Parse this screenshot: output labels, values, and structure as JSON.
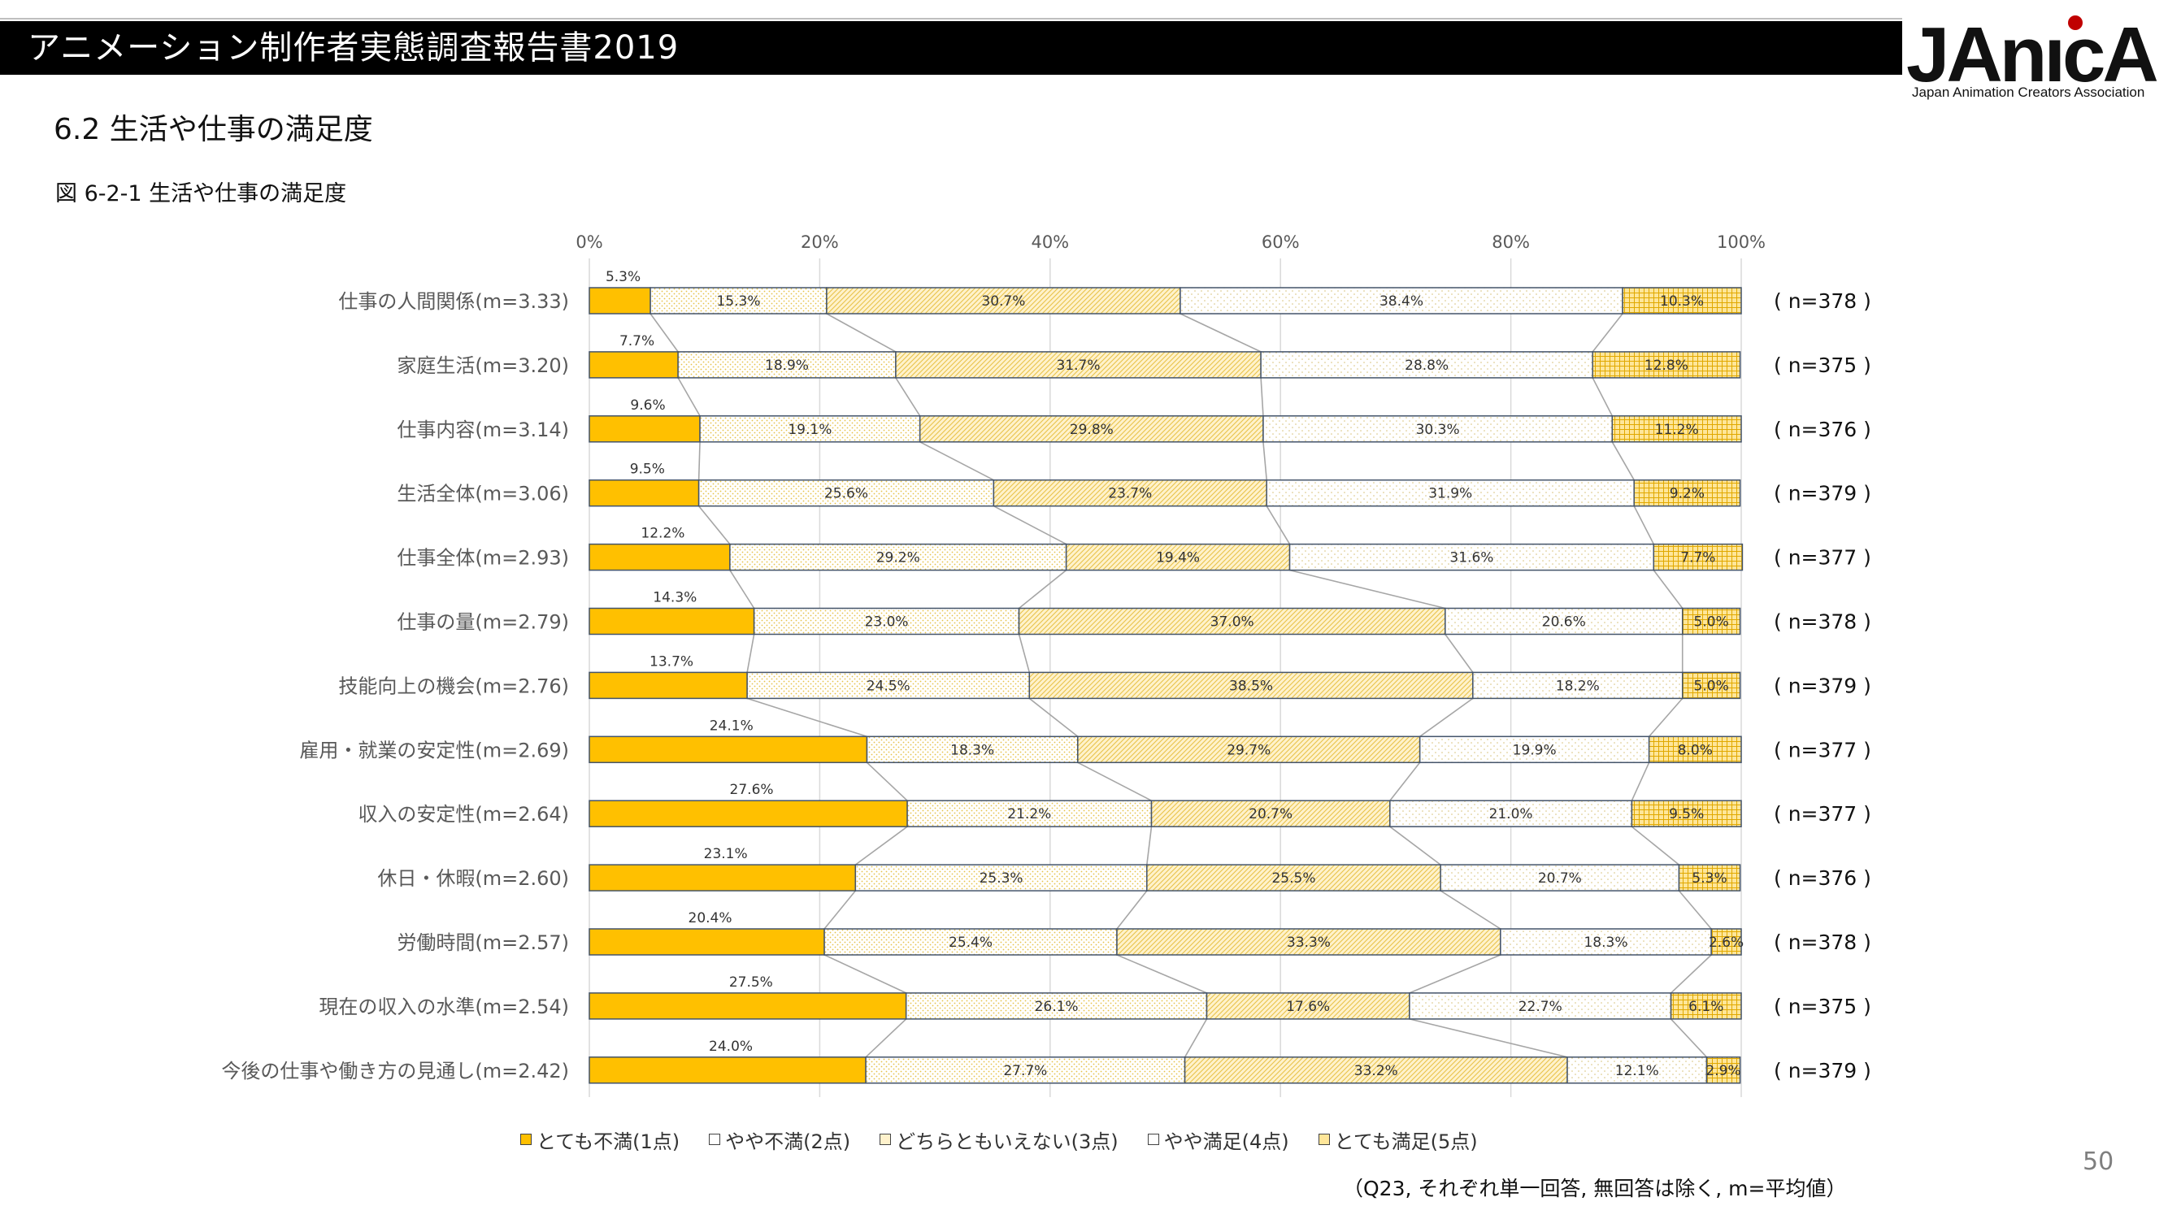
{
  "header": {
    "title": "アニメーション制作者実態調査報告書2019",
    "logo_text": "JAnicA",
    "logo_subtitle": "Japan Animation Creators Association"
  },
  "section_title": "6.2  生活や仕事の満足度",
  "figure_caption": "図 6-2-1  生活や仕事の満足度",
  "page_number": "50",
  "footnote": "（Q23,  それぞれ単一回答,  無回答は除く,  m=平均値）",
  "colors": {
    "very_dissatisfied": "#FFC000",
    "somewhat_dissatisfied": "#FFFFFF",
    "neutral": "#FFF2CC",
    "somewhat_satisfied": "#FFFFFF",
    "very_satisfied": "#FFE699",
    "bar_border": "#44546A",
    "connector": "#A6A6A6"
  },
  "chart_data": {
    "type": "bar",
    "orientation": "horizontal-stacked-100",
    "x_ticks": [
      "0%",
      "20%",
      "40%",
      "60%",
      "80%",
      "100%"
    ],
    "xlim": [
      0,
      100
    ],
    "grid": true,
    "legend_position": "bottom",
    "series": [
      {
        "name": "とても不満(1点)",
        "values": [
          5.3,
          7.7,
          9.6,
          9.5,
          12.2,
          14.3,
          13.7,
          24.1,
          27.6,
          23.1,
          20.4,
          27.5,
          24.0
        ]
      },
      {
        "name": "やや不満(2点)",
        "values": [
          15.3,
          18.9,
          19.1,
          25.6,
          29.2,
          23.0,
          24.5,
          18.3,
          21.2,
          25.3,
          25.4,
          26.1,
          27.7
        ]
      },
      {
        "name": "どちらともいえない(3点)",
        "values": [
          30.7,
          31.7,
          29.8,
          23.7,
          19.4,
          37.0,
          38.5,
          29.7,
          20.7,
          25.5,
          33.3,
          17.6,
          33.2
        ]
      },
      {
        "name": "やや満足(4点)",
        "values": [
          38.4,
          28.8,
          30.3,
          31.9,
          31.6,
          20.6,
          18.2,
          19.9,
          21.0,
          20.7,
          18.3,
          22.7,
          12.1
        ]
      },
      {
        "name": "とても満足(5点)",
        "values": [
          10.3,
          12.8,
          11.2,
          9.2,
          7.7,
          5.0,
          5.0,
          8.0,
          9.5,
          5.3,
          2.6,
          6.1,
          2.9
        ]
      }
    ],
    "categories": [
      "仕事の人間関係(m=3.33)",
      "家庭生活(m=3.20)",
      "仕事内容(m=3.14)",
      "生活全体(m=3.06)",
      "仕事全体(m=2.93)",
      "仕事の量(m=2.79)",
      "技能向上の機会(m=2.76)",
      "雇用・就業の安定性(m=2.69)",
      "収入の安定性(m=2.64)",
      "休日・休暇(m=2.60)",
      "労働時間(m=2.57)",
      "現在の収入の水準(m=2.54)",
      "今後の仕事や働き方の見通し(m=2.42)"
    ],
    "n_labels": [
      "( n=378 )",
      "( n=375 )",
      "( n=376 )",
      "( n=379 )",
      "( n=377 )",
      "( n=378 )",
      "( n=379 )",
      "( n=377 )",
      "( n=377 )",
      "( n=376 )",
      "( n=378 )",
      "( n=375 )",
      "( n=379 )"
    ],
    "value_labels": [
      [
        "5.3%",
        "15.3%",
        "30.7%",
        "38.4%",
        "10.3%"
      ],
      [
        "7.7%",
        "18.9%",
        "31.7%",
        "28.8%",
        "12.8%"
      ],
      [
        "9.6%",
        "19.1%",
        "29.8%",
        "30.3%",
        "11.2%"
      ],
      [
        "9.5%",
        "25.6%",
        "23.7%",
        "31.9%",
        "9.2%"
      ],
      [
        "12.2%",
        "29.2%",
        "19.4%",
        "31.6%",
        "7.7%"
      ],
      [
        "14.3%",
        "23.0%",
        "37.0%",
        "20.6%",
        "5.0%"
      ],
      [
        "13.7%",
        "24.5%",
        "38.5%",
        "18.2%",
        "5.0%"
      ],
      [
        "24.1%",
        "18.3%",
        "29.7%",
        "19.9%",
        "8.0%"
      ],
      [
        "27.6%",
        "21.2%",
        "20.7%",
        "21.0%",
        "9.5%"
      ],
      [
        "23.1%",
        "25.3%",
        "25.5%",
        "20.7%",
        "5.3%"
      ],
      [
        "20.4%",
        "25.4%",
        "33.3%",
        "18.3%",
        "2.6%"
      ],
      [
        "27.5%",
        "26.1%",
        "17.6%",
        "22.7%",
        "6.1%"
      ],
      [
        "24.0%",
        "27.7%",
        "33.2%",
        "12.1%",
        "2.9%"
      ]
    ]
  }
}
